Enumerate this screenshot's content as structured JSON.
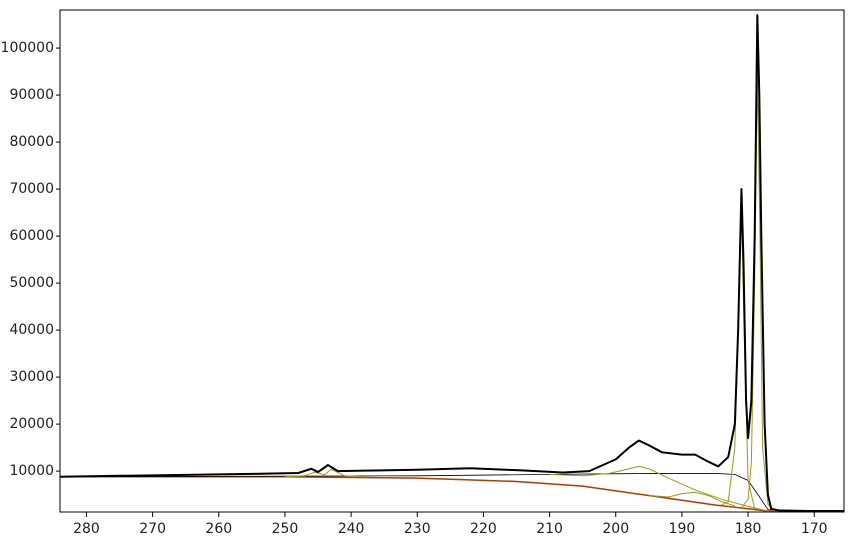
{
  "chart_data": {
    "type": "line",
    "xlim": [
      284,
      165.5
    ],
    "ylim": [
      1300,
      108100
    ],
    "xticks": [
      280,
      270,
      260,
      250,
      240,
      230,
      220,
      210,
      200,
      190,
      180,
      170
    ],
    "yticks": [
      10000,
      20000,
      30000,
      40000,
      50000,
      60000,
      70000,
      80000,
      90000,
      100000
    ],
    "series": [
      {
        "color": "#b03a00",
        "width": 1.5,
        "x": [
          284,
          250,
          230,
          215,
          205,
          195,
          185,
          180,
          177,
          165.5
        ],
        "values": [
          8800,
          8800,
          8500,
          7800,
          6800,
          4800,
          2800,
          2000,
          1500,
          1500
        ]
      },
      {
        "color": "#000000",
        "width": 0.8,
        "x": [
          284,
          230,
          210,
          195,
          185,
          182,
          180,
          178.5,
          177,
          165.5
        ],
        "values": [
          8800,
          9000,
          9300,
          9500,
          9500,
          9300,
          8000,
          5000,
          1800,
          1500
        ]
      },
      {
        "color": "#9a9a1a",
        "width": 1,
        "x": [
          250,
          247,
          245.5,
          244,
          243,
          241,
          238
        ],
        "values": [
          8800,
          9000,
          9800,
          9200,
          10400,
          9000,
          8800
        ]
      },
      {
        "color": "#9a9a1a",
        "width": 1,
        "x": [
          210,
          205,
          201,
          198,
          196.5,
          195,
          192,
          188,
          184,
          180,
          177
        ],
        "values": [
          9300,
          9000,
          9500,
          10500,
          11000,
          10500,
          8500,
          6000,
          4000,
          2500,
          1500
        ]
      },
      {
        "color": "#9a9a1a",
        "width": 1,
        "x": [
          195,
          192,
          190,
          188,
          186,
          184,
          182
        ],
        "values": [
          4800,
          4500,
          5200,
          5500,
          4800,
          3500,
          2600
        ]
      },
      {
        "color": "#9a9a1a",
        "width": 1,
        "x": [
          184,
          183,
          182,
          181.5,
          181,
          180.6,
          180,
          179
        ],
        "values": [
          2800,
          3500,
          15000,
          40000,
          66000,
          40000,
          8000,
          2000
        ]
      },
      {
        "color": "#9a9a1a",
        "width": 1,
        "x": [
          181,
          180,
          179.5,
          179,
          178.6,
          178.2,
          177.8,
          177,
          176
        ],
        "values": [
          2200,
          4000,
          12000,
          50000,
          95000,
          60000,
          15000,
          3000,
          1500
        ]
      },
      {
        "color": "#000000",
        "width": 2,
        "x": [
          284,
          275,
          265,
          255,
          248,
          246,
          245,
          243.5,
          242,
          238,
          230,
          222,
          215,
          208,
          204,
          200,
          198,
          196.5,
          195,
          193,
          190,
          188,
          186,
          184.5,
          183,
          182,
          181.5,
          181,
          180.7,
          180.3,
          180,
          179.5,
          179,
          178.6,
          178.3,
          178,
          177.5,
          177,
          176.5,
          175,
          165.5
        ],
        "values": [
          8800,
          9000,
          9200,
          9400,
          9600,
          10500,
          9800,
          11300,
          10000,
          10100,
          10300,
          10600,
          10200,
          9700,
          10000,
          12500,
          15000,
          16500,
          15500,
          14000,
          13500,
          13500,
          12000,
          11000,
          13000,
          20000,
          40000,
          70000,
          55000,
          25000,
          17000,
          25000,
          60000,
          107000,
          90000,
          60000,
          20000,
          5000,
          2000,
          1500,
          1500
        ]
      }
    ]
  }
}
